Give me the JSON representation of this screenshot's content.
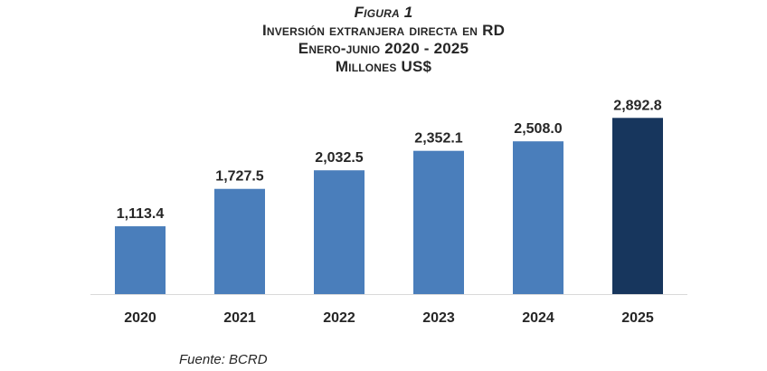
{
  "figure_label": "Figura 1",
  "title_line1": "Inversión extranjera directa en RD",
  "title_line2": "Enero-junio 2020 - 2025",
  "title_line3": "Millones US$",
  "source": "Fuente: BCRD",
  "colors": {
    "bar": "#4a7ebb",
    "highlight": "#17365d",
    "axis": "#d9d9d9",
    "text": "#262626"
  },
  "chart_data": {
    "type": "bar",
    "title": "Inversión extranjera directa en RD",
    "subtitle": "Enero-junio 2020 - 2025",
    "ylabel": "",
    "xlabel": "",
    "categories": [
      "2020",
      "2021",
      "2022",
      "2023",
      "2024",
      "2025"
    ],
    "values": [
      1113.4,
      1727.5,
      2032.5,
      2352.1,
      2508.0,
      2892.8
    ],
    "labels": [
      "1,113.4",
      "1,727.5",
      "2,032.5",
      "2,352.1",
      "2,508.0",
      "2,892.8"
    ],
    "highlight_index": 5,
    "ylim": [
      0,
      3000
    ],
    "grid": false,
    "legend": "none"
  }
}
